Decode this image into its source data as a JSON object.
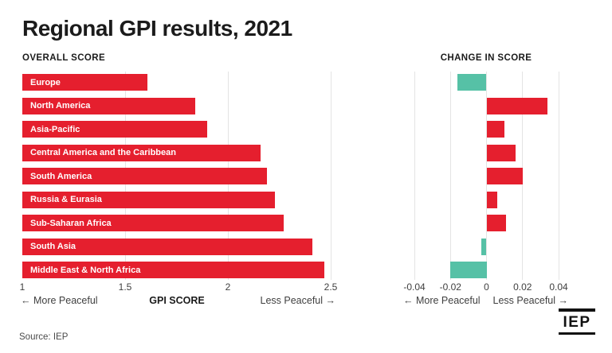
{
  "page": {
    "title": "Regional GPI results, 2021",
    "source": "Source: IEP",
    "logo_text": "IEP"
  },
  "colors": {
    "red": "#e51f2e",
    "teal": "#56c1a6",
    "gridline": "#e4e4e4",
    "title_text": "#1b1b1b",
    "axis_text": "#3f3f3f",
    "bar_label_text": "#ffffff"
  },
  "chart_data": [
    {
      "type": "bar",
      "orientation": "horizontal",
      "title": "OVERALL SCORE",
      "categories": [
        "Europe",
        "North America",
        "Asia-Pacific",
        "Central America and the Caribbean",
        "South America",
        "Russia & Eurasia",
        "Sub-Saharan Africa",
        "South Asia",
        "Middle East & North Africa"
      ],
      "values": [
        1.61,
        1.84,
        1.9,
        2.16,
        2.19,
        2.23,
        2.27,
        2.41,
        2.47
      ],
      "xlim": [
        1,
        2.5
      ],
      "xticks": [
        1,
        1.5,
        2,
        2.5
      ],
      "xtick_labels": [
        "1",
        "1.5",
        "2",
        "2.5"
      ],
      "grid_ticks": [
        1.5,
        2,
        2.5
      ],
      "grid": true,
      "legend": "none",
      "show_bar_labels": true,
      "bar_color": "#e51f2e",
      "xlabel": "GPI SCORE",
      "left_arrow_label": "← More Peaceful",
      "right_arrow_label": "Less Peaceful →"
    },
    {
      "type": "bar",
      "orientation": "horizontal",
      "title": "CHANGE IN SCORE",
      "categories": [
        "Europe",
        "North America",
        "Asia-Pacific",
        "Central America and the Caribbean",
        "South America",
        "Russia & Eurasia",
        "Sub-Saharan Africa",
        "South Asia",
        "Middle East & North Africa"
      ],
      "values": [
        -0.016,
        0.034,
        0.01,
        0.016,
        0.02,
        0.006,
        0.011,
        -0.003,
        -0.02
      ],
      "xlim": [
        -0.04,
        0.04
      ],
      "xticks": [
        -0.04,
        -0.02,
        0,
        0.02,
        0.04
      ],
      "xtick_labels": [
        "-0.04",
        "-0.02",
        "0",
        "0.02",
        "0.04"
      ],
      "grid_ticks": [
        -0.04,
        -0.02,
        0,
        0.02,
        0.04
      ],
      "grid": true,
      "legend": "none",
      "show_bar_labels": false,
      "positive_color": "#e51f2e",
      "negative_color": "#56c1a6",
      "xlabel": "",
      "left_arrow_label": "← More Peaceful",
      "right_arrow_label": "Less Peaceful →"
    }
  ]
}
